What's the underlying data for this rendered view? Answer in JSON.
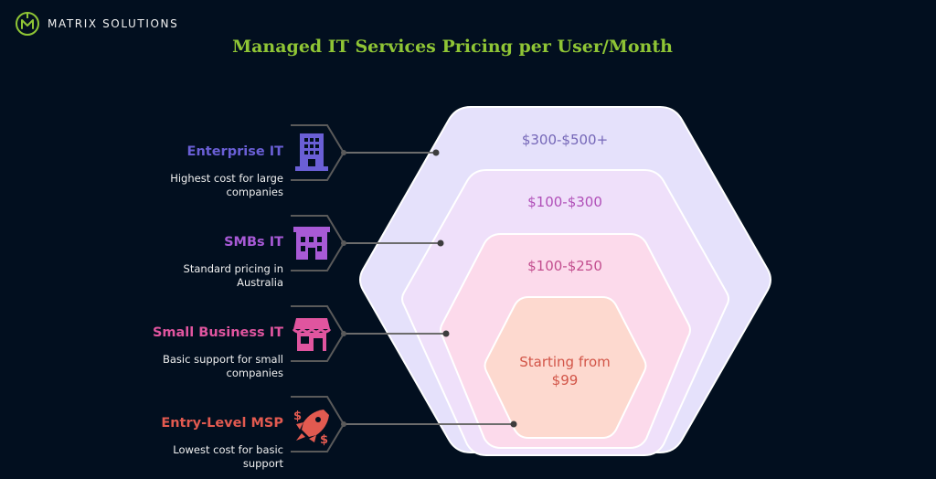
{
  "brand": {
    "name": "MATRIX SOLUTIONS"
  },
  "title": "Managed IT Services Pricing per User/Month",
  "colors": {
    "background": "#020f1f",
    "title": "#8fc535",
    "enterprise": "#6a5fd6",
    "smb": "#a85ad6",
    "small_business": "#e0559f",
    "entry_level": "#e25a50",
    "connector": "#6c6c6c"
  },
  "tiers": [
    {
      "label": "Enterprise IT",
      "description": "Highest cost for large companies",
      "desc_line1": "Highest cost for large",
      "desc_line2": "companies",
      "icon": "office-building-icon",
      "price": "$300-$500+"
    },
    {
      "label": "SMBs IT",
      "description": "Standard pricing in Australia",
      "desc_line1": "Standard pricing in",
      "desc_line2": "Australia",
      "icon": "storefront-building-icon",
      "price": "$100-$300"
    },
    {
      "label": "Small Business IT",
      "description": "Basic support for small companies",
      "desc_line1": "Basic support for small",
      "desc_line2": "companies",
      "icon": "shop-awning-icon",
      "price": "$100-$250"
    },
    {
      "label": "Entry-Level MSP",
      "description": "Lowest cost for basic support",
      "desc_line1": "Lowest cost for basic",
      "desc_line2": "support",
      "icon": "rocket-dollar-icon",
      "price_line1": "Starting from",
      "price_line2": "$99"
    }
  ]
}
